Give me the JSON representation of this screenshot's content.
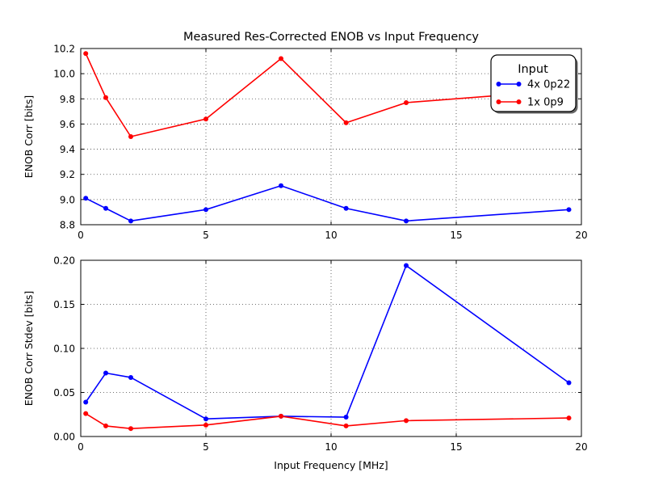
{
  "figure": {
    "background": "#ffffff",
    "frame_color": "#000000",
    "grid_color": "#444444"
  },
  "chart_data": [
    {
      "type": "line",
      "title": "Measured Res-Corrected ENOB vs Input Frequency",
      "xlabel": "",
      "ylabel": "ENOB Corr [bits]",
      "xlim": [
        0,
        20
      ],
      "ylim": [
        8.8,
        10.2
      ],
      "xticks": [
        "0",
        "5",
        "10",
        "15",
        "20"
      ],
      "yticks": [
        "8.8",
        "9.0",
        "9.2",
        "9.4",
        "9.6",
        "9.8",
        "10.0",
        "10.2"
      ],
      "grid": true,
      "x": [
        0.2,
        1,
        2,
        5,
        8,
        10.6,
        13,
        19.5
      ],
      "series": [
        {
          "name": "4x 0p22",
          "color": "#0000ff",
          "values": [
            9.01,
            8.93,
            8.83,
            8.92,
            9.11,
            8.93,
            8.83,
            8.92
          ]
        },
        {
          "name": "1x 0p9",
          "color": "#ff0000",
          "values": [
            10.16,
            9.81,
            9.5,
            9.64,
            10.12,
            9.61,
            9.77,
            9.87
          ]
        }
      ],
      "legend": {
        "title": "Input",
        "position": "upper right",
        "entries": [
          "4x 0p22",
          "1x 0p9"
        ]
      }
    },
    {
      "type": "line",
      "title": "",
      "xlabel": "Input Frequency [MHz]",
      "ylabel": "ENOB Corr Stdev [bits]",
      "xlim": [
        0,
        20
      ],
      "ylim": [
        0.0,
        0.2
      ],
      "xticks": [
        "0",
        "5",
        "10",
        "15",
        "20"
      ],
      "yticks": [
        "0.00",
        "0.05",
        "0.10",
        "0.15",
        "0.20"
      ],
      "grid": true,
      "x": [
        0.2,
        1,
        2,
        5,
        8,
        10.6,
        13,
        19.5
      ],
      "series": [
        {
          "name": "4x 0p22",
          "color": "#0000ff",
          "values": [
            0.039,
            0.072,
            0.067,
            0.02,
            0.023,
            0.022,
            0.194,
            0.061
          ]
        },
        {
          "name": "1x 0p9",
          "color": "#ff0000",
          "values": [
            0.026,
            0.012,
            0.009,
            0.013,
            0.023,
            0.012,
            0.018,
            0.021
          ]
        }
      ]
    }
  ]
}
